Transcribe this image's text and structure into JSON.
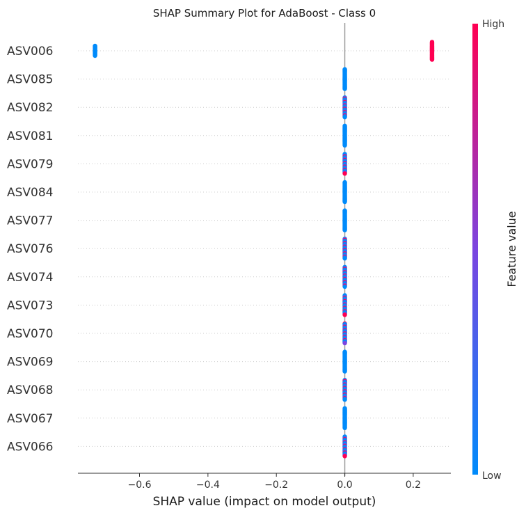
{
  "chart_data": {
    "type": "scatter",
    "title": "SHAP Summary Plot for AdaBoost - Class 0",
    "xlabel": "SHAP value (impact on model output)",
    "ylabel": "",
    "xlim": [
      -0.78,
      0.31
    ],
    "x_ticks": [
      -0.6,
      -0.4,
      -0.2,
      0.0,
      0.2
    ],
    "x_tick_labels": [
      "−0.6",
      "−0.4",
      "−0.2",
      "0.0",
      "0.2"
    ],
    "features": [
      "ASV006",
      "ASV085",
      "ASV082",
      "ASV081",
      "ASV079",
      "ASV084",
      "ASV077",
      "ASV076",
      "ASV074",
      "ASV073",
      "ASV070",
      "ASV069",
      "ASV068",
      "ASV067",
      "ASV066"
    ],
    "series": [
      {
        "feature": "ASV006",
        "clusters": [
          {
            "x": -0.73,
            "color": "low",
            "spread": 0.5
          },
          {
            "x": 0.255,
            "color": "high",
            "spread": 0.9
          }
        ]
      },
      {
        "feature": "ASV085",
        "clusters": [
          {
            "x": 0.0,
            "color": "low",
            "spread": 1.0
          }
        ]
      },
      {
        "feature": "ASV082",
        "clusters": [
          {
            "x": 0.0,
            "color": "mixed",
            "spread": 1.0
          }
        ]
      },
      {
        "feature": "ASV081",
        "clusters": [
          {
            "x": 0.0,
            "color": "low",
            "spread": 1.0
          }
        ]
      },
      {
        "feature": "ASV079",
        "clusters": [
          {
            "x": 0.0,
            "color": "mixed",
            "spread": 1.0
          }
        ]
      },
      {
        "feature": "ASV084",
        "clusters": [
          {
            "x": 0.0,
            "color": "low",
            "spread": 1.0
          }
        ]
      },
      {
        "feature": "ASV077",
        "clusters": [
          {
            "x": 0.0,
            "color": "low",
            "spread": 1.0
          }
        ]
      },
      {
        "feature": "ASV076",
        "clusters": [
          {
            "x": 0.0,
            "color": "mixed",
            "spread": 1.0
          }
        ]
      },
      {
        "feature": "ASV074",
        "clusters": [
          {
            "x": 0.0,
            "color": "mixed",
            "spread": 1.0
          }
        ]
      },
      {
        "feature": "ASV073",
        "clusters": [
          {
            "x": 0.0,
            "color": "mixed",
            "spread": 1.0
          }
        ]
      },
      {
        "feature": "ASV070",
        "clusters": [
          {
            "x": 0.0,
            "color": "mixed",
            "spread": 1.0
          }
        ]
      },
      {
        "feature": "ASV069",
        "clusters": [
          {
            "x": 0.0,
            "color": "low",
            "spread": 1.0
          }
        ]
      },
      {
        "feature": "ASV068",
        "clusters": [
          {
            "x": 0.0,
            "color": "mixed",
            "spread": 1.0
          }
        ]
      },
      {
        "feature": "ASV067",
        "clusters": [
          {
            "x": 0.0,
            "color": "low",
            "spread": 1.0
          }
        ]
      },
      {
        "feature": "ASV066",
        "clusters": [
          {
            "x": 0.0,
            "color": "mixed",
            "spread": 1.0
          }
        ]
      }
    ],
    "colorbar": {
      "label": "Feature value",
      "high_label": "High",
      "low_label": "Low",
      "high_color": "#ff0052",
      "mid_color": "#7b45e0",
      "low_color": "#008bfb"
    },
    "zero_line": true,
    "grid": "dotted horizontal rows"
  }
}
